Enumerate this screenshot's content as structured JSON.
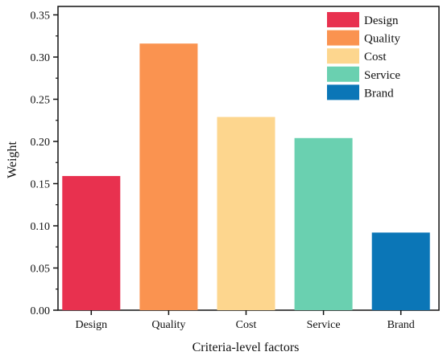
{
  "chart_data": {
    "type": "bar",
    "title": "",
    "xlabel": "Criteria-level factors",
    "ylabel": "Weight",
    "categories": [
      "Design",
      "Quality",
      "Cost",
      "Service",
      "Brand"
    ],
    "values": [
      0.159,
      0.316,
      0.229,
      0.204,
      0.092
    ],
    "colors": [
      "#E8314F",
      "#FA9350",
      "#FDD68E",
      "#6AD0B0",
      "#0B76B7"
    ],
    "ylim": [
      0,
      0.36
    ],
    "yticks": [
      "0.00",
      "0.05",
      "0.10",
      "0.15",
      "0.20",
      "0.25",
      "0.30",
      "0.35"
    ],
    "grid": false,
    "legend": {
      "placement": "top-right",
      "entries": [
        "Design",
        "Quality",
        "Cost",
        "Service",
        "Brand"
      ]
    }
  }
}
